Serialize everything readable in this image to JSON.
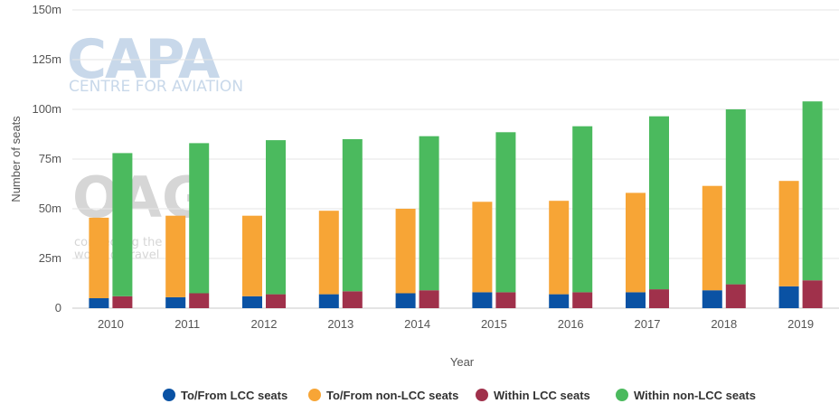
{
  "chart_data": {
    "type": "bar",
    "categories": [
      "2010",
      "2011",
      "2012",
      "2013",
      "2014",
      "2015",
      "2016",
      "2017",
      "2018",
      "2019"
    ],
    "stacks": [
      {
        "stack": "to-from",
        "series": [
          {
            "name": "To/From LCC seats",
            "color": "#0a52a4",
            "values": [
              5,
              5.5,
              6,
              7,
              7.5,
              8,
              7,
              8,
              9,
              11
            ]
          },
          {
            "name": "To/From non-LCC seats",
            "color": "#f7a536",
            "values": [
              40.5,
              41,
              40.5,
              42,
              42.5,
              45.5,
              47,
              50,
              52.5,
              53
            ]
          }
        ]
      },
      {
        "stack": "within",
        "series": [
          {
            "name": "Within LCC seats",
            "color": "#a0314b",
            "values": [
              6,
              7.5,
              7,
              8.5,
              9,
              8,
              8,
              9.5,
              12,
              14
            ]
          },
          {
            "name": "Within non-LCC seats",
            "color": "#4bba5e",
            "values": [
              72,
              75.5,
              77.5,
              76.5,
              77.5,
              80.5,
              83.5,
              87,
              88,
              90
            ]
          }
        ]
      }
    ],
    "yticks": [
      "0",
      "25m",
      "50m",
      "75m",
      "100m",
      "125m",
      "150m"
    ],
    "ylim": [
      0,
      150
    ],
    "xlabel": "Year",
    "ylabel": "Number of seats",
    "grid": true,
    "legend_position": "bottom-center"
  },
  "watermarks": {
    "capa_main": "CAPA",
    "capa_sub": "CENTRE FOR AVIATION",
    "oag_main": "OAG",
    "oag_sub_1": "connecting the",
    "oag_sub_2": "world of travel"
  }
}
